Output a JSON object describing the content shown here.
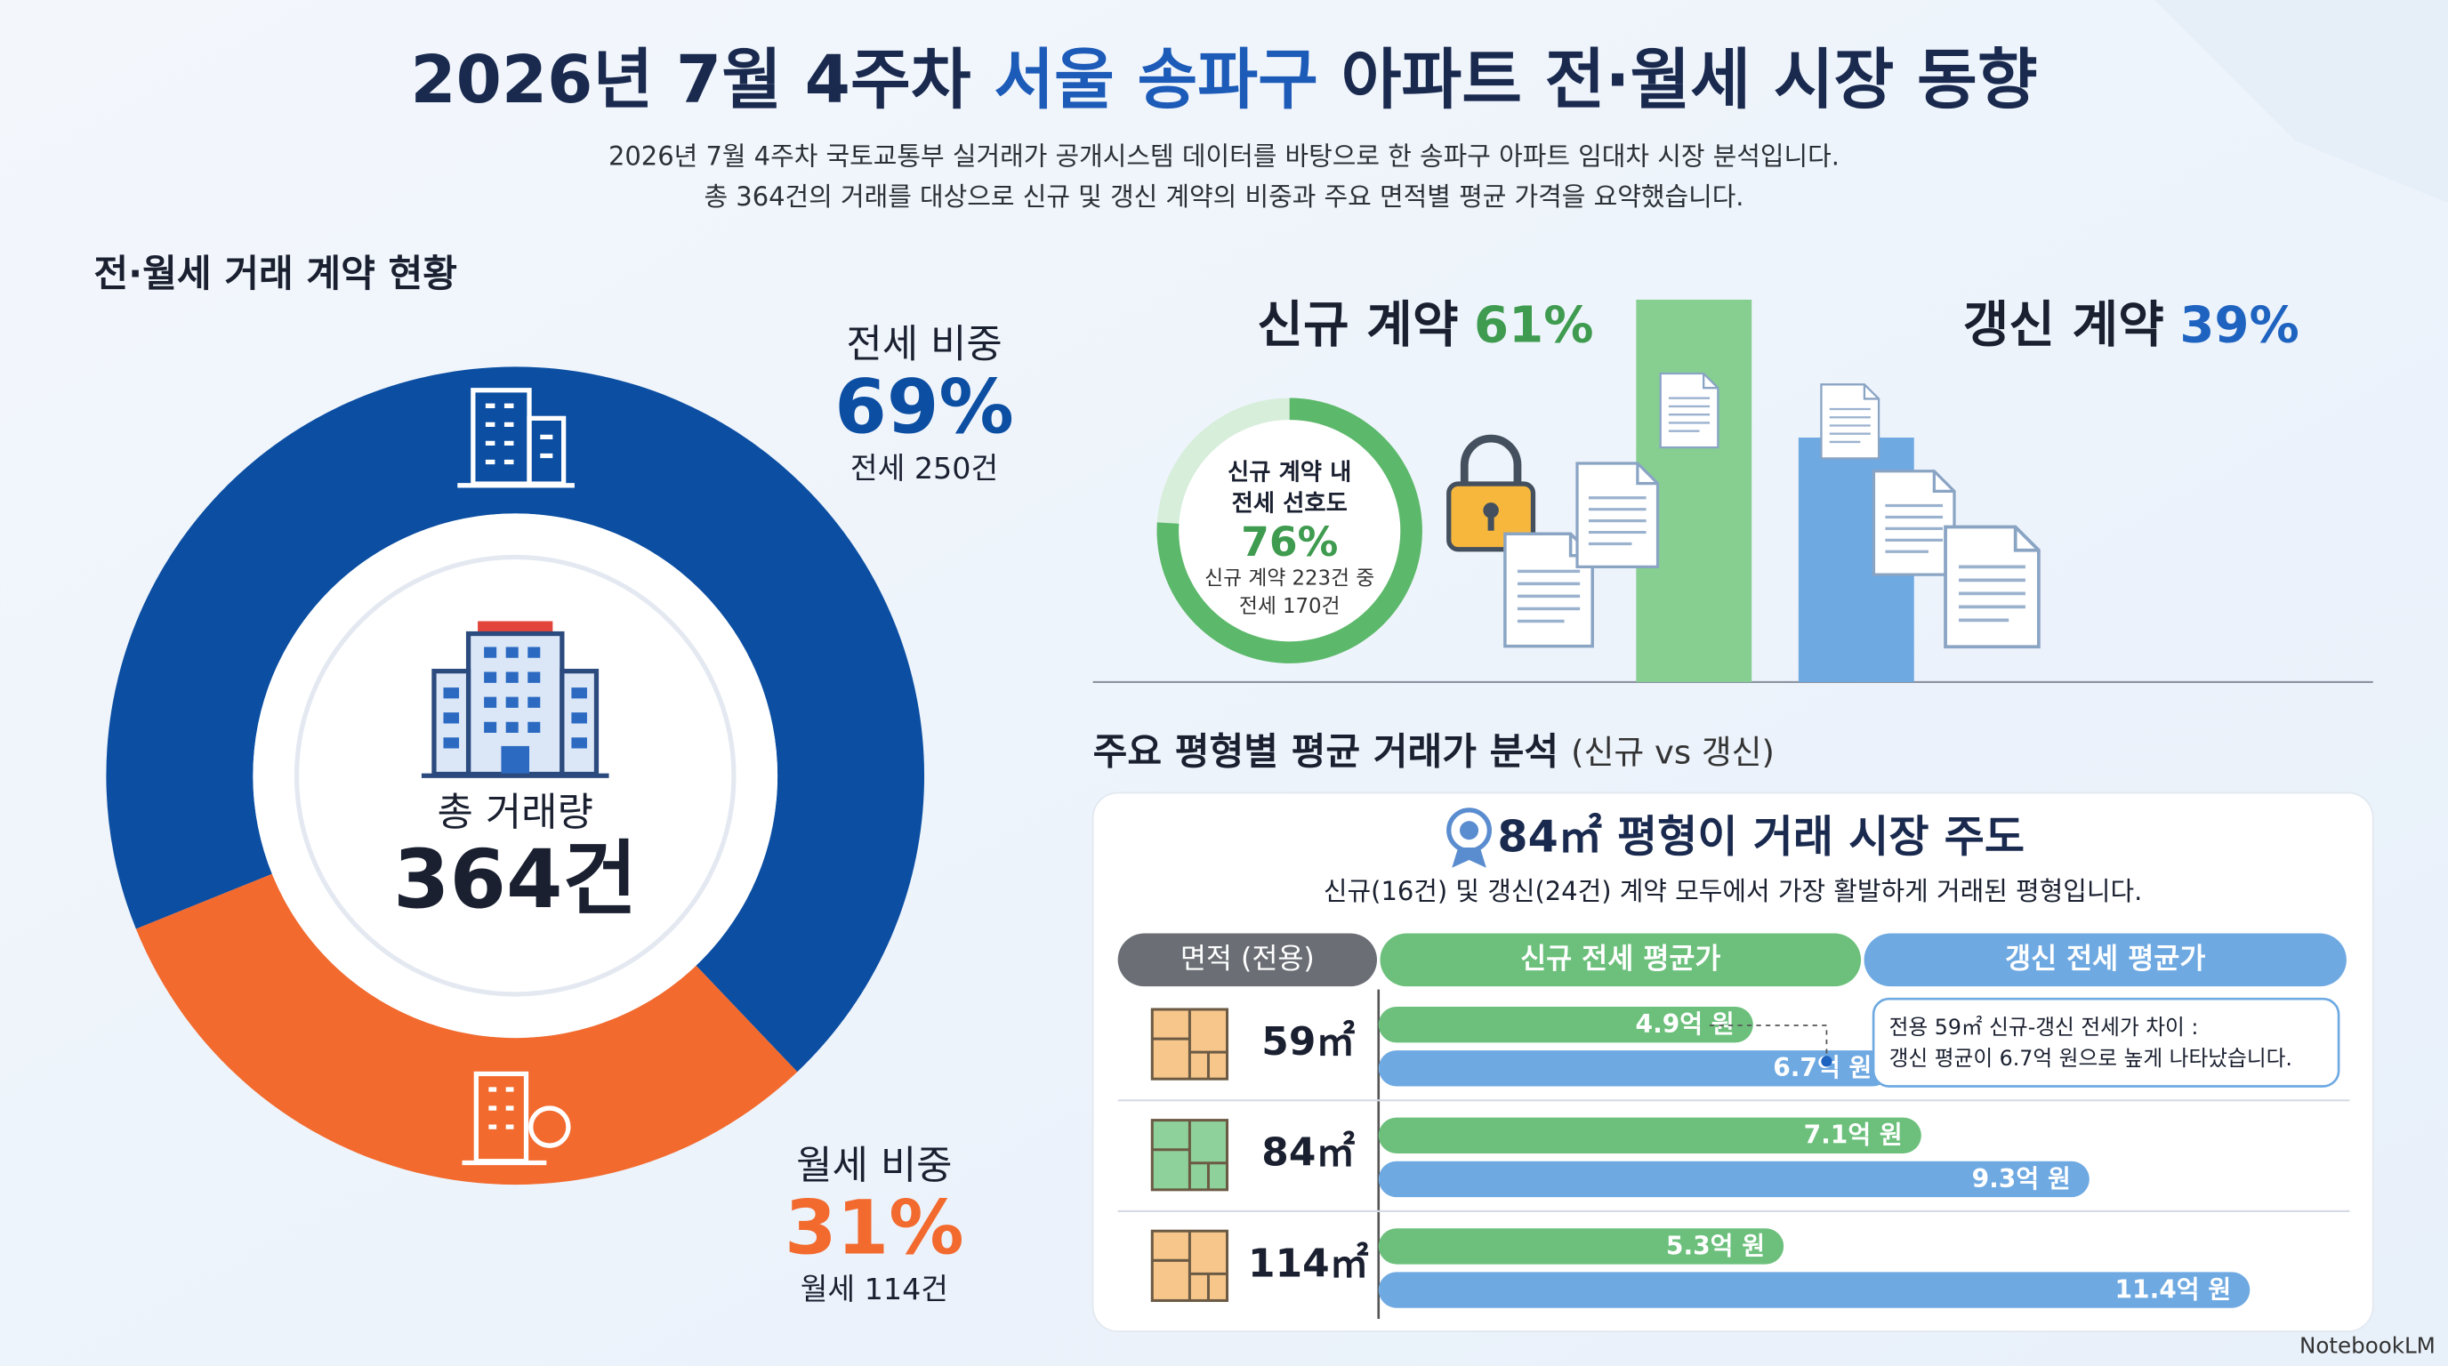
{
  "header": {
    "title_parts": [
      "2026년 7월 4주차 ",
      "서울 송파구",
      " 아파트 전·월세 시장 동향"
    ],
    "subtitle_lines": [
      "2026년 7월 4주차 국토교통부 실거래가 공개시스템 데이터를 바탕으로 한 송파구 아파트 임대차 시장 분석입니다.",
      "총 364건의 거래를 대상으로 신규 및 갱신 계약의 비중과 주요 면적별 평균 가격을 요약했습니다."
    ]
  },
  "chart_data": [
    {
      "type": "donut",
      "title": "전·월세 거래 계약 현황",
      "center_label": "총 거래량",
      "center_value": "364건",
      "categories": [
        "전세 비중",
        "월세 비중"
      ],
      "values": [
        69,
        31
      ],
      "value_labels": [
        "69%",
        "31%"
      ],
      "details": [
        "전세 250건",
        "월세 114건"
      ],
      "colors": [
        "#0b4ea2",
        "#f26a2e"
      ]
    },
    {
      "type": "bar",
      "categories": [
        "신규 계약",
        "갱신 계약"
      ],
      "values": [
        61,
        39
      ],
      "value_labels": [
        "61%",
        "39%"
      ],
      "colors": [
        "#86cf91",
        "#6ea9e2"
      ],
      "label_colors": [
        "#3e9b4f",
        "#1f63c0"
      ]
    },
    {
      "type": "gauge",
      "title_lines": [
        "신규 계약 내",
        "전세 선호도"
      ],
      "value": 76,
      "value_label": "76%",
      "note_lines": [
        "신규 계약 223건 중",
        "전세 170건"
      ],
      "color": "#5cb86a"
    },
    {
      "type": "hbar",
      "title": "주요 평형별 평균 거래가 분석",
      "subtitle": "(신규 vs 갱신)",
      "highlight_title": "84㎡ 평형이 거래 시장 주도",
      "highlight_text": "신규(16건) 및 갱신(24건) 계약 모두에서 가장 활발하게 거래된 평형입니다.",
      "category_header": "면적 (전용)",
      "categories": [
        "59㎡",
        "84㎡",
        "114㎡"
      ],
      "series": [
        {
          "name": "신규 전세 평균가",
          "color": "#6cc07c",
          "values": [
            4.9,
            7.1,
            5.3
          ],
          "value_labels": [
            "4.9억 원",
            "7.1억 원",
            "5.3억 원"
          ]
        },
        {
          "name": "갱신 전세 평균가",
          "color": "#6ea9e2",
          "values": [
            6.7,
            9.3,
            11.4
          ],
          "value_labels": [
            "6.7억 원",
            "9.3억 원",
            "11.4억 원"
          ]
        }
      ],
      "xlim": [
        0,
        12.5
      ],
      "annotation_lines": [
        "전용 59㎡ 신규-갱신 전세가 차이 :",
        "갱신 평균이 6.7억 원으로 높게 나타났습니다."
      ]
    }
  ],
  "footer": {
    "brand": "NotebookLM"
  }
}
